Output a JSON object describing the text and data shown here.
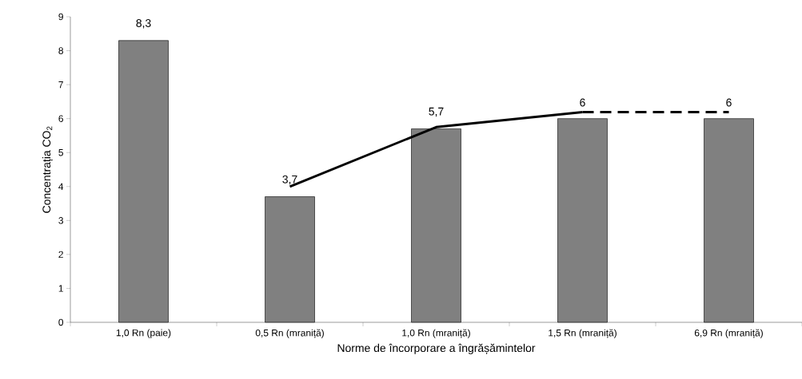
{
  "chart_data": {
    "type": "bar",
    "xlabel": "Norme de încorporare a îngrășămintelor",
    "ylabel": "Concentrația CO$_{2}$",
    "categories": [
      "1,0 Rn (paie)",
      "0,5 Rn (mraniță)",
      "1,0 Rn (mraniță)",
      "1,5 Rn (mraniță)",
      "6,9 Rn (mraniță)"
    ],
    "values": [
      8.3,
      3.7,
      5.7,
      6,
      6
    ],
    "value_labels": [
      "8,3",
      "3,7",
      "5,7",
      "6",
      "6"
    ],
    "color": "#808080",
    "ylim": [
      0,
      9
    ],
    "yticks": [
      0,
      1,
      2,
      3,
      4,
      5,
      6,
      7,
      8,
      9
    ],
    "grid": false,
    "series": [
      {
        "type": "line",
        "color": "#000000",
        "line_style": "solid",
        "values": [
          null,
          4.0,
          5.75,
          6.19,
          null
        ]
      },
      {
        "type": "line",
        "color": "#000000",
        "line_style": "dashed",
        "values": [
          null,
          null,
          null,
          6.19,
          6.19
        ]
      }
    ]
  }
}
